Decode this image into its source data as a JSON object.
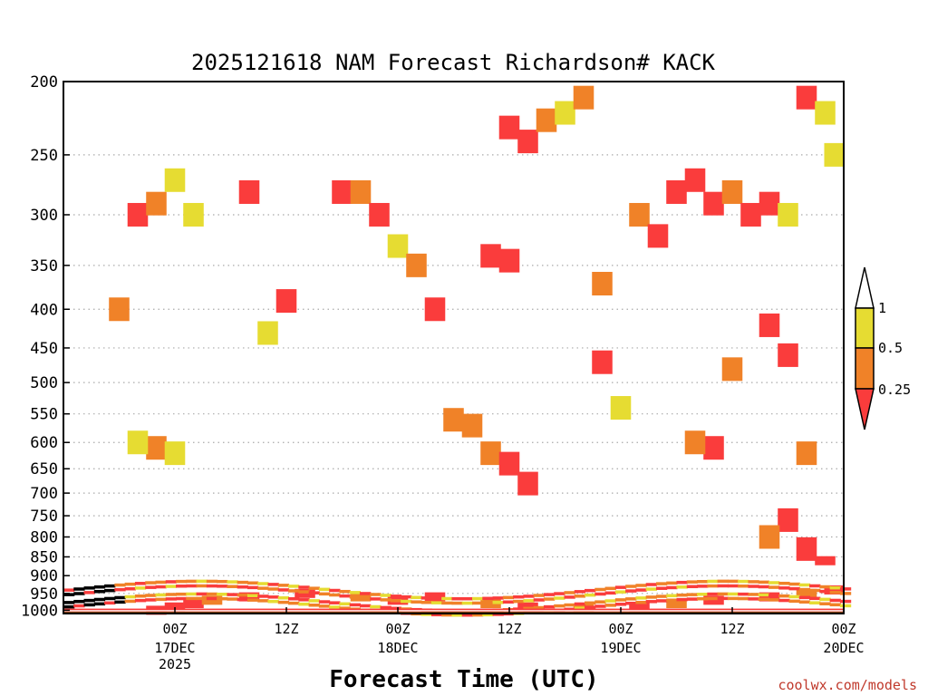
{
  "chart_data": {
    "type": "heatmap",
    "title": "2025121618 NAM Forecast Richardson# KACK",
    "xlabel": "Forecast Time (UTC)",
    "ylabel": "",
    "x_start_hour": -6,
    "x_end_hour": 78,
    "y_levels": [
      "200",
      "250",
      "300",
      "350",
      "400",
      "450",
      "500",
      "550",
      "600",
      "650",
      "700",
      "750",
      "800",
      "850",
      "900",
      "950",
      "1000"
    ],
    "y_range_hPa": [
      200,
      1010
    ],
    "x_ticks": [
      {
        "hour": 6,
        "label": "00Z",
        "sub": "17DEC",
        "sub2": "2025"
      },
      {
        "hour": 18,
        "label": "12Z",
        "sub": "",
        "sub2": ""
      },
      {
        "hour": 30,
        "label": "00Z",
        "sub": "18DEC",
        "sub2": ""
      },
      {
        "hour": 42,
        "label": "12Z",
        "sub": "",
        "sub2": ""
      },
      {
        "hour": 54,
        "label": "00Z",
        "sub": "19DEC",
        "sub2": ""
      },
      {
        "hour": 66,
        "label": "12Z",
        "sub": "",
        "sub2": ""
      },
      {
        "hour": 78,
        "label": "00Z",
        "sub": "20DEC",
        "sub2": ""
      }
    ],
    "colorbar": {
      "thresholds": [
        "1",
        "0.5",
        "0.25"
      ],
      "colors": {
        "above_1": "#ffffff",
        "0.5_to_1": "#e6dc32",
        "0.25_to_0.5": "#f08228",
        "below_0.25": "#fa3c3c"
      }
    },
    "ground_color": "#8b4513",
    "cells": [
      {
        "hour": 4,
        "p": 1000,
        "cls": 3
      },
      {
        "hour": 6,
        "p": 990,
        "cls": 3
      },
      {
        "hour": 8,
        "p": 980,
        "cls": 3
      },
      {
        "hour": 10,
        "p": 970,
        "cls": 2
      },
      {
        "hour": 14,
        "p": 960,
        "cls": 3
      },
      {
        "hour": 20,
        "p": 950,
        "cls": 3
      },
      {
        "hour": 26,
        "p": 960,
        "cls": 2
      },
      {
        "hour": 30,
        "p": 970,
        "cls": 3
      },
      {
        "hour": 34,
        "p": 960,
        "cls": 3
      },
      {
        "hour": 40,
        "p": 980,
        "cls": 2
      },
      {
        "hour": 44,
        "p": 990,
        "cls": 3
      },
      {
        "hour": 50,
        "p": 995,
        "cls": 2
      },
      {
        "hour": 56,
        "p": 990,
        "cls": 3
      },
      {
        "hour": 60,
        "p": 980,
        "cls": 2
      },
      {
        "hour": 64,
        "p": 970,
        "cls": 3
      },
      {
        "hour": 70,
        "p": 960,
        "cls": 3
      },
      {
        "hour": 74,
        "p": 950,
        "cls": 2
      },
      {
        "hour": 77,
        "p": 940,
        "cls": 3
      },
      {
        "hour": 2,
        "p": 300,
        "cls": 3
      },
      {
        "hour": 4,
        "p": 290,
        "cls": 2
      },
      {
        "hour": 6,
        "p": 270,
        "cls": 1
      },
      {
        "hour": 8,
        "p": 300,
        "cls": 1
      },
      {
        "hour": 0,
        "p": 400,
        "cls": 2
      },
      {
        "hour": 4,
        "p": 610,
        "cls": 2
      },
      {
        "hour": 2,
        "p": 600,
        "cls": 1
      },
      {
        "hour": 6,
        "p": 620,
        "cls": 1
      },
      {
        "hour": 18,
        "p": 390,
        "cls": 3
      },
      {
        "hour": 16,
        "p": 430,
        "cls": 1
      },
      {
        "hour": 14,
        "p": 280,
        "cls": 3
      },
      {
        "hour": 24,
        "p": 280,
        "cls": 3
      },
      {
        "hour": 26,
        "p": 280,
        "cls": 2
      },
      {
        "hour": 28,
        "p": 300,
        "cls": 3
      },
      {
        "hour": 30,
        "p": 330,
        "cls": 1
      },
      {
        "hour": 32,
        "p": 350,
        "cls": 2
      },
      {
        "hour": 34,
        "p": 400,
        "cls": 3
      },
      {
        "hour": 36,
        "p": 560,
        "cls": 2
      },
      {
        "hour": 38,
        "p": 570,
        "cls": 2
      },
      {
        "hour": 40,
        "p": 620,
        "cls": 2
      },
      {
        "hour": 42,
        "p": 640,
        "cls": 3
      },
      {
        "hour": 44,
        "p": 680,
        "cls": 3
      },
      {
        "hour": 42,
        "p": 230,
        "cls": 3
      },
      {
        "hour": 44,
        "p": 240,
        "cls": 3
      },
      {
        "hour": 46,
        "p": 225,
        "cls": 2
      },
      {
        "hour": 48,
        "p": 220,
        "cls": 1
      },
      {
        "hour": 50,
        "p": 210,
        "cls": 2
      },
      {
        "hour": 40,
        "p": 340,
        "cls": 3
      },
      {
        "hour": 42,
        "p": 345,
        "cls": 3
      },
      {
        "hour": 52,
        "p": 370,
        "cls": 2
      },
      {
        "hour": 52,
        "p": 470,
        "cls": 3
      },
      {
        "hour": 54,
        "p": 540,
        "cls": 1
      },
      {
        "hour": 56,
        "p": 300,
        "cls": 2
      },
      {
        "hour": 58,
        "p": 320,
        "cls": 3
      },
      {
        "hour": 60,
        "p": 280,
        "cls": 3
      },
      {
        "hour": 62,
        "p": 270,
        "cls": 3
      },
      {
        "hour": 64,
        "p": 290,
        "cls": 3
      },
      {
        "hour": 66,
        "p": 280,
        "cls": 2
      },
      {
        "hour": 68,
        "p": 300,
        "cls": 3
      },
      {
        "hour": 70,
        "p": 290,
        "cls": 3
      },
      {
        "hour": 72,
        "p": 300,
        "cls": 1
      },
      {
        "hour": 74,
        "p": 210,
        "cls": 3
      },
      {
        "hour": 76,
        "p": 220,
        "cls": 1
      },
      {
        "hour": 77,
        "p": 250,
        "cls": 1
      },
      {
        "hour": 74,
        "p": 620,
        "cls": 2
      },
      {
        "hour": 72,
        "p": 760,
        "cls": 3
      },
      {
        "hour": 70,
        "p": 800,
        "cls": 2
      },
      {
        "hour": 74,
        "p": 830,
        "cls": 3
      },
      {
        "hour": 76,
        "p": 860,
        "cls": 3
      },
      {
        "hour": 64,
        "p": 610,
        "cls": 3
      },
      {
        "hour": 62,
        "p": 600,
        "cls": 2
      },
      {
        "hour": 66,
        "p": 480,
        "cls": 2
      },
      {
        "hour": 70,
        "p": 420,
        "cls": 3
      },
      {
        "hour": 72,
        "p": 460,
        "cls": 3
      }
    ]
  },
  "credit": "coolwx.com/models"
}
